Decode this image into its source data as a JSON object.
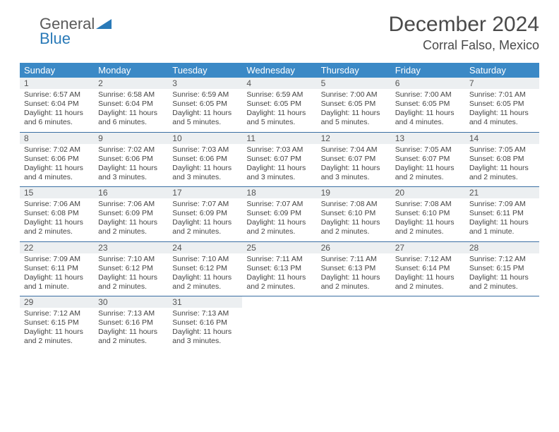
{
  "logo": {
    "general": "General",
    "blue": "Blue"
  },
  "title": "December 2024",
  "location": "Corral Falso, Mexico",
  "colors": {
    "header_bg": "#3b89c6",
    "header_text": "#ffffff",
    "daynum_bg": "#eceff1",
    "border": "#3b6fa3",
    "logo_blue": "#2a7ab8",
    "text": "#444444"
  },
  "day_headers": [
    "Sunday",
    "Monday",
    "Tuesday",
    "Wednesday",
    "Thursday",
    "Friday",
    "Saturday"
  ],
  "weeks": [
    [
      {
        "n": "1",
        "sr": "6:57 AM",
        "ss": "6:04 PM",
        "dl": "11 hours and 6 minutes."
      },
      {
        "n": "2",
        "sr": "6:58 AM",
        "ss": "6:04 PM",
        "dl": "11 hours and 6 minutes."
      },
      {
        "n": "3",
        "sr": "6:59 AM",
        "ss": "6:05 PM",
        "dl": "11 hours and 5 minutes."
      },
      {
        "n": "4",
        "sr": "6:59 AM",
        "ss": "6:05 PM",
        "dl": "11 hours and 5 minutes."
      },
      {
        "n": "5",
        "sr": "7:00 AM",
        "ss": "6:05 PM",
        "dl": "11 hours and 5 minutes."
      },
      {
        "n": "6",
        "sr": "7:00 AM",
        "ss": "6:05 PM",
        "dl": "11 hours and 4 minutes."
      },
      {
        "n": "7",
        "sr": "7:01 AM",
        "ss": "6:05 PM",
        "dl": "11 hours and 4 minutes."
      }
    ],
    [
      {
        "n": "8",
        "sr": "7:02 AM",
        "ss": "6:06 PM",
        "dl": "11 hours and 4 minutes."
      },
      {
        "n": "9",
        "sr": "7:02 AM",
        "ss": "6:06 PM",
        "dl": "11 hours and 3 minutes."
      },
      {
        "n": "10",
        "sr": "7:03 AM",
        "ss": "6:06 PM",
        "dl": "11 hours and 3 minutes."
      },
      {
        "n": "11",
        "sr": "7:03 AM",
        "ss": "6:07 PM",
        "dl": "11 hours and 3 minutes."
      },
      {
        "n": "12",
        "sr": "7:04 AM",
        "ss": "6:07 PM",
        "dl": "11 hours and 3 minutes."
      },
      {
        "n": "13",
        "sr": "7:05 AM",
        "ss": "6:07 PM",
        "dl": "11 hours and 2 minutes."
      },
      {
        "n": "14",
        "sr": "7:05 AM",
        "ss": "6:08 PM",
        "dl": "11 hours and 2 minutes."
      }
    ],
    [
      {
        "n": "15",
        "sr": "7:06 AM",
        "ss": "6:08 PM",
        "dl": "11 hours and 2 minutes."
      },
      {
        "n": "16",
        "sr": "7:06 AM",
        "ss": "6:09 PM",
        "dl": "11 hours and 2 minutes."
      },
      {
        "n": "17",
        "sr": "7:07 AM",
        "ss": "6:09 PM",
        "dl": "11 hours and 2 minutes."
      },
      {
        "n": "18",
        "sr": "7:07 AM",
        "ss": "6:09 PM",
        "dl": "11 hours and 2 minutes."
      },
      {
        "n": "19",
        "sr": "7:08 AM",
        "ss": "6:10 PM",
        "dl": "11 hours and 2 minutes."
      },
      {
        "n": "20",
        "sr": "7:08 AM",
        "ss": "6:10 PM",
        "dl": "11 hours and 2 minutes."
      },
      {
        "n": "21",
        "sr": "7:09 AM",
        "ss": "6:11 PM",
        "dl": "11 hours and 1 minute."
      }
    ],
    [
      {
        "n": "22",
        "sr": "7:09 AM",
        "ss": "6:11 PM",
        "dl": "11 hours and 1 minute."
      },
      {
        "n": "23",
        "sr": "7:10 AM",
        "ss": "6:12 PM",
        "dl": "11 hours and 2 minutes."
      },
      {
        "n": "24",
        "sr": "7:10 AM",
        "ss": "6:12 PM",
        "dl": "11 hours and 2 minutes."
      },
      {
        "n": "25",
        "sr": "7:11 AM",
        "ss": "6:13 PM",
        "dl": "11 hours and 2 minutes."
      },
      {
        "n": "26",
        "sr": "7:11 AM",
        "ss": "6:13 PM",
        "dl": "11 hours and 2 minutes."
      },
      {
        "n": "27",
        "sr": "7:12 AM",
        "ss": "6:14 PM",
        "dl": "11 hours and 2 minutes."
      },
      {
        "n": "28",
        "sr": "7:12 AM",
        "ss": "6:15 PM",
        "dl": "11 hours and 2 minutes."
      }
    ],
    [
      {
        "n": "29",
        "sr": "7:12 AM",
        "ss": "6:15 PM",
        "dl": "11 hours and 2 minutes."
      },
      {
        "n": "30",
        "sr": "7:13 AM",
        "ss": "6:16 PM",
        "dl": "11 hours and 2 minutes."
      },
      {
        "n": "31",
        "sr": "7:13 AM",
        "ss": "6:16 PM",
        "dl": "11 hours and 3 minutes."
      },
      null,
      null,
      null,
      null
    ]
  ],
  "labels": {
    "sunrise": "Sunrise:",
    "sunset": "Sunset:",
    "daylight": "Daylight:"
  }
}
